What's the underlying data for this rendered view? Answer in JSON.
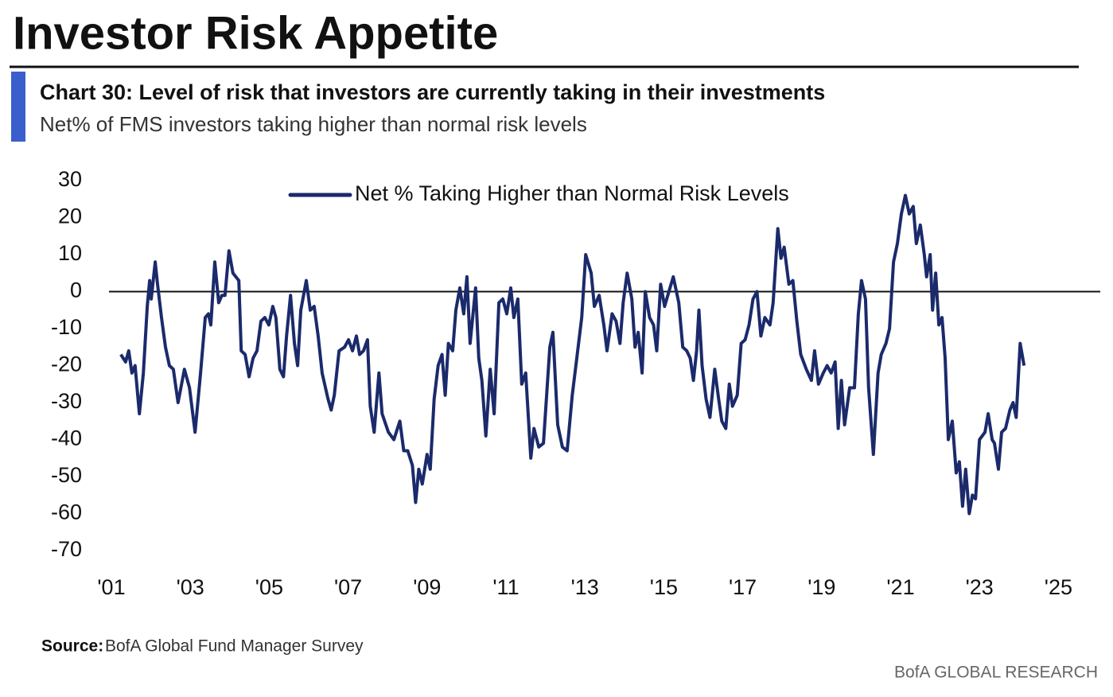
{
  "header": {
    "title": "Investor Risk Appetite"
  },
  "chart_data": {
    "type": "line",
    "title": "Chart 30: Level of risk that investors are currently taking in their investments",
    "subtitle": "Net% of FMS investors taking higher than normal risk levels",
    "xlim": [
      2001,
      2026
    ],
    "ylim": [
      -70,
      30
    ],
    "xticks": [
      {
        "value": 2001,
        "label": "'01"
      },
      {
        "value": 2003,
        "label": "'03"
      },
      {
        "value": 2005,
        "label": "'05"
      },
      {
        "value": 2007,
        "label": "'07"
      },
      {
        "value": 2009,
        "label": "'09"
      },
      {
        "value": 2011,
        "label": "'11"
      },
      {
        "value": 2013,
        "label": "'13"
      },
      {
        "value": 2015,
        "label": "'15"
      },
      {
        "value": 2017,
        "label": "'17"
      },
      {
        "value": 2019,
        "label": "'19"
      },
      {
        "value": 2021,
        "label": "'21"
      },
      {
        "value": 2023,
        "label": "'23"
      },
      {
        "value": 2025,
        "label": "'25"
      }
    ],
    "yticks": [
      30,
      20,
      10,
      0,
      -10,
      -20,
      -30,
      -40,
      -50,
      -60,
      -70
    ],
    "x": [
      2001.24,
      2001.36,
      2001.44,
      2001.52,
      2001.6,
      2001.71,
      2001.81,
      2001.91,
      2001.97,
      2002.01,
      2002.11,
      2002.17,
      2002.27,
      2002.37,
      2002.47,
      2002.57,
      2002.69,
      2002.85,
      2002.98,
      2003.12,
      2003.26,
      2003.38,
      2003.46,
      2003.52,
      2003.62,
      2003.72,
      2003.8,
      2003.88,
      2003.98,
      2004.08,
      2004.23,
      2004.29,
      2004.39,
      2004.49,
      2004.59,
      2004.69,
      2004.79,
      2004.89,
      2004.99,
      2005.09,
      2005.17,
      2005.27,
      2005.36,
      2005.44,
      2005.54,
      2005.64,
      2005.72,
      2005.8,
      2005.94,
      2006.04,
      2006.14,
      2006.24,
      2006.34,
      2006.49,
      2006.57,
      2006.65,
      2006.77,
      2006.91,
      2007.01,
      2007.11,
      2007.21,
      2007.29,
      2007.39,
      2007.49,
      2007.56,
      2007.66,
      2007.78,
      2007.86,
      2008.02,
      2008.16,
      2008.31,
      2008.41,
      2008.51,
      2008.63,
      2008.71,
      2008.79,
      2008.88,
      2009.0,
      2009.08,
      2009.18,
      2009.28,
      2009.38,
      2009.46,
      2009.54,
      2009.65,
      2009.73,
      2009.83,
      2009.93,
      2010.01,
      2010.09,
      2010.23,
      2010.31,
      2010.39,
      2010.49,
      2010.6,
      2010.7,
      2010.82,
      2010.92,
      2011.02,
      2011.12,
      2011.2,
      2011.3,
      2011.4,
      2011.5,
      2011.63,
      2011.71,
      2011.83,
      2011.95,
      2012.11,
      2012.19,
      2012.31,
      2012.43,
      2012.55,
      2012.68,
      2012.76,
      2012.92,
      2013.02,
      2013.16,
      2013.24,
      2013.36,
      2013.48,
      2013.56,
      2013.69,
      2013.79,
      2013.89,
      2013.97,
      2014.07,
      2014.19,
      2014.27,
      2014.35,
      2014.45,
      2014.53,
      2014.64,
      2014.74,
      2014.82,
      2014.92,
      2015.02,
      2015.1,
      2015.24,
      2015.38,
      2015.48,
      2015.58,
      2015.67,
      2015.75,
      2015.83,
      2015.89,
      2015.97,
      2016.07,
      2016.17,
      2016.29,
      2016.39,
      2016.47,
      2016.57,
      2016.66,
      2016.74,
      2016.86,
      2016.96,
      2017.06,
      2017.16,
      2017.26,
      2017.36,
      2017.46,
      2017.56,
      2017.69,
      2017.77,
      2017.89,
      2017.97,
      2018.05,
      2018.17,
      2018.27,
      2018.37,
      2018.47,
      2018.61,
      2018.74,
      2018.82,
      2018.92,
      2019.04,
      2019.14,
      2019.24,
      2019.34,
      2019.42,
      2019.5,
      2019.58,
      2019.71,
      2019.83,
      2019.93,
      2020.01,
      2020.11,
      2020.19,
      2020.31,
      2020.43,
      2020.51,
      2020.63,
      2020.72,
      2020.82,
      2020.92,
      2021.02,
      2021.12,
      2021.22,
      2021.32,
      2021.4,
      2021.5,
      2021.6,
      2021.66,
      2021.75,
      2021.81,
      2021.89,
      2021.97,
      2022.05,
      2022.13,
      2022.21,
      2022.31,
      2022.41,
      2022.49,
      2022.57,
      2022.65,
      2022.74,
      2022.82,
      2022.9,
      2023.0,
      2023.14,
      2023.22,
      2023.32,
      2023.38,
      2023.48,
      2023.56,
      2023.66,
      2023.77,
      2023.85,
      2023.93,
      2024.03,
      2024.13
    ],
    "series": [
      {
        "name": "Net % Taking Higher than Normal Risk Levels",
        "color": "#1b2a6b",
        "values": [
          -17,
          -19,
          -16,
          -22,
          -20,
          -33,
          -22,
          -4,
          3,
          -2,
          8,
          2,
          -7,
          -15,
          -20,
          -21,
          -30,
          -21,
          -26,
          -38,
          -22,
          -7,
          -6,
          -9,
          8,
          -3,
          -1,
          -1,
          11,
          5,
          3,
          -16,
          -17,
          -23,
          -18,
          -16,
          -8,
          -7,
          -9,
          -4,
          -7,
          -21,
          -23,
          -12,
          -1,
          -14,
          -20,
          -5,
          3,
          -5,
          -4,
          -12,
          -22,
          -29,
          -32,
          -28,
          -16,
          -15,
          -13,
          -16,
          -12,
          -17,
          -16,
          -13,
          -31,
          -38,
          -22,
          -33,
          -38,
          -40,
          -35,
          -43,
          -43,
          -47,
          -57,
          -48,
          -52,
          -44,
          -48,
          -29,
          -20,
          -17,
          -28,
          -14,
          -16,
          -5,
          1,
          -6,
          4,
          -14,
          1,
          -18,
          -24,
          -39,
          -21,
          -33,
          -3,
          -2,
          -6,
          1,
          -7,
          -2,
          -25,
          -22,
          -45,
          -37,
          -42,
          -41,
          -15,
          -11,
          -36,
          -42,
          -43,
          -28,
          -21,
          -7,
          10,
          5,
          -4,
          -1,
          -9,
          -16,
          -6,
          -8,
          -14,
          -3,
          5,
          -2,
          -15,
          -11,
          -22,
          0,
          -7,
          -9,
          -16,
          2,
          -4,
          -1,
          4,
          -3,
          -15,
          -16,
          -18,
          -24,
          -16,
          -5,
          -20,
          -29,
          -34,
          -21,
          -29,
          -35,
          -37,
          -25,
          -31,
          -28,
          -14,
          -13,
          -9,
          -2,
          0,
          -12,
          -7,
          -9,
          -3,
          17,
          9,
          12,
          2,
          3,
          -8,
          -17,
          -21,
          -24,
          -16,
          -25,
          -22,
          -20,
          -22,
          -19,
          -37,
          -24,
          -36,
          -26,
          -26,
          -6,
          3,
          -2,
          -26,
          -44,
          -22,
          -17,
          -14,
          -10,
          8,
          13,
          21,
          26,
          21,
          23,
          13,
          18,
          10,
          4,
          10,
          -5,
          5,
          -9,
          -7,
          -18,
          -40,
          -35,
          -49,
          -46,
          -58,
          -48,
          -60,
          -55,
          -56,
          -40,
          -38,
          -33,
          -40,
          -41,
          -48,
          -38,
          -37,
          -32,
          -30,
          -34,
          -14,
          -20
        ]
      }
    ]
  },
  "source": {
    "label": "Source:",
    "text": "BofA Global Fund Manager Survey"
  },
  "footer": "BofA GLOBAL RESEARCH"
}
